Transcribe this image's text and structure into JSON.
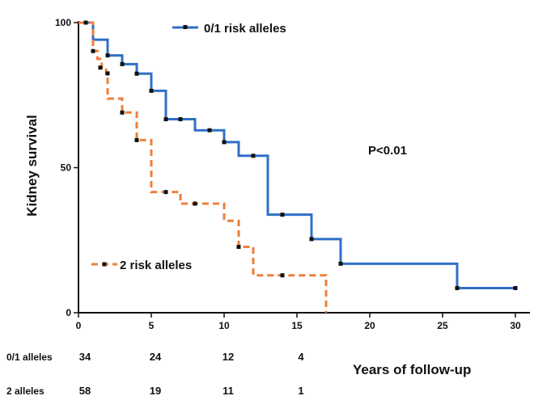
{
  "chart_data": {
    "type": "line",
    "ylabel": "Kidney survival",
    "xlabel": "Years of follow-up",
    "xlim": [
      0,
      31
    ],
    "ylim": [
      0,
      100
    ],
    "x_ticks": [
      0,
      5,
      10,
      15,
      20,
      25,
      30
    ],
    "y_ticks": [
      0,
      50,
      100
    ],
    "annotation": "P<0.01",
    "grid": false,
    "series": [
      {
        "name": "0/1 risk alleles",
        "color": "#2f6fc7",
        "dash": false,
        "steps": [
          [
            0,
            100
          ],
          [
            1,
            94.1
          ],
          [
            2,
            88.7
          ],
          [
            3,
            85.7
          ],
          [
            4,
            82.4
          ],
          [
            5,
            76.5
          ],
          [
            6,
            66.7
          ],
          [
            8,
            62.9
          ],
          [
            10,
            58.8
          ],
          [
            11,
            54.1
          ],
          [
            13,
            33.8
          ],
          [
            16,
            25.4
          ],
          [
            18,
            16.9
          ],
          [
            26,
            8.5
          ],
          [
            30,
            8.5
          ]
        ],
        "censored": [
          [
            0.5,
            100
          ],
          [
            2,
            88.7
          ],
          [
            3,
            85.7
          ],
          [
            4,
            82.4
          ],
          [
            5,
            76.5
          ],
          [
            6,
            66.7
          ],
          [
            7,
            66.7
          ],
          [
            9,
            62.9
          ],
          [
            10,
            58.8
          ],
          [
            12,
            54.1
          ],
          [
            14,
            33.8
          ],
          [
            16,
            25.4
          ],
          [
            18,
            16.9
          ],
          [
            26,
            8.5
          ],
          [
            30,
            8.5
          ]
        ]
      },
      {
        "name": "2 risk alleles",
        "color": "#f07e3a",
        "dash": true,
        "steps": [
          [
            0,
            100
          ],
          [
            1,
            90.2
          ],
          [
            1.3,
            87.5
          ],
          [
            1.6,
            84.5
          ],
          [
            1.9,
            82.5
          ],
          [
            2,
            73.8
          ],
          [
            3,
            69
          ],
          [
            4,
            59.5
          ],
          [
            5,
            41.6
          ],
          [
            7,
            37.6
          ],
          [
            10,
            31.7
          ],
          [
            11,
            22.7
          ],
          [
            12,
            12.9
          ],
          [
            17,
            0
          ]
        ],
        "censored": [
          [
            0.5,
            100
          ],
          [
            1,
            90.2
          ],
          [
            1.5,
            84.5
          ],
          [
            2,
            82.5
          ],
          [
            3,
            69
          ],
          [
            4,
            59.5
          ],
          [
            6,
            41.6
          ],
          [
            8,
            37.6
          ],
          [
            11,
            22.7
          ],
          [
            14,
            12.9
          ]
        ]
      }
    ],
    "risk_table": {
      "times": [
        0,
        5,
        10,
        15
      ],
      "rows": [
        {
          "label": "0/1 alleles",
          "values": [
            "34",
            "24",
            "12",
            "4"
          ]
        },
        {
          "label": "2 alleles",
          "values": [
            "58",
            "19",
            "11",
            "1"
          ]
        }
      ]
    }
  }
}
